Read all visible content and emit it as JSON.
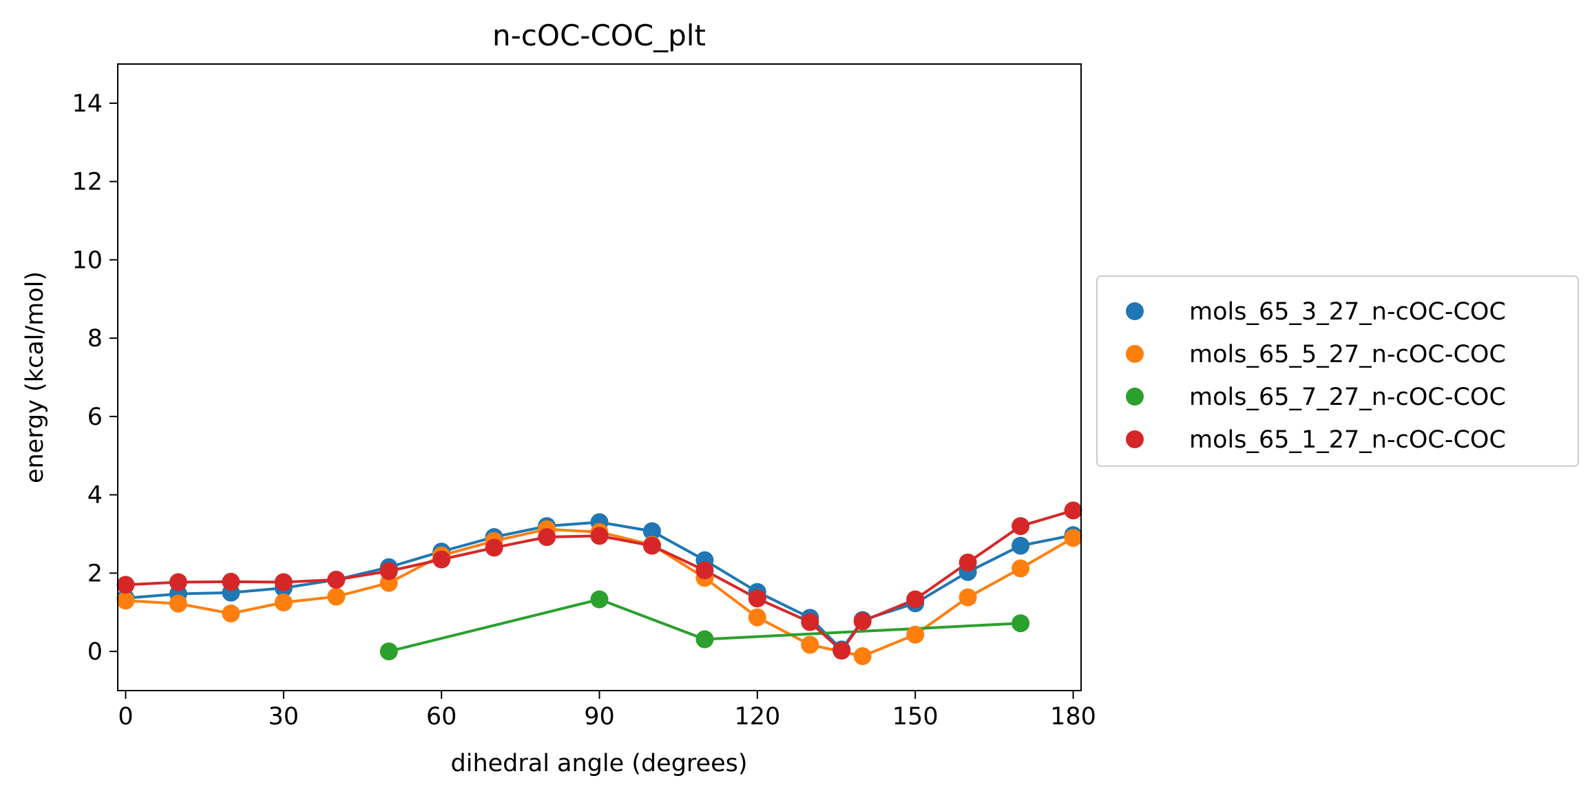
{
  "chart_data": {
    "type": "line",
    "title": "n-cOC-COC_plt",
    "xlabel": "dihedral angle (degrees)",
    "ylabel": "energy (kcal/mol)",
    "xlim": [
      -1.5,
      181.5
    ],
    "ylim": [
      -1,
      15
    ],
    "xticks": [
      0,
      30,
      60,
      90,
      120,
      150,
      180
    ],
    "yticks": [
      0,
      2,
      4,
      6,
      8,
      10,
      12,
      14
    ],
    "grid": false,
    "legend_position": "right-outside",
    "series": [
      {
        "name": "mols_65_3_27_n-cOC-COC",
        "color": "#1f77b4",
        "x": [
          0,
          10,
          20,
          30,
          40,
          50,
          60,
          70,
          80,
          90,
          100,
          110,
          120,
          130,
          136,
          140,
          150,
          160,
          170,
          180
        ],
        "y": [
          1.36,
          1.47,
          1.5,
          1.62,
          1.83,
          2.15,
          2.55,
          2.92,
          3.2,
          3.3,
          3.07,
          2.33,
          1.52,
          0.86,
          0.05,
          0.8,
          1.23,
          2.03,
          2.7,
          2.97
        ]
      },
      {
        "name": "mols_65_5_27_n-cOC-COC",
        "color": "#ff7f0e",
        "x": [
          0,
          10,
          20,
          30,
          40,
          50,
          60,
          70,
          80,
          90,
          100,
          110,
          120,
          130,
          140,
          150,
          160,
          170,
          180
        ],
        "y": [
          1.3,
          1.22,
          0.97,
          1.25,
          1.4,
          1.75,
          2.45,
          2.82,
          3.12,
          3.05,
          2.72,
          1.88,
          0.87,
          0.17,
          -0.12,
          0.43,
          1.38,
          2.12,
          2.9
        ]
      },
      {
        "name": "mols_65_7_27_n-cOC-COC",
        "color": "#2ca02c",
        "x": [
          50,
          90,
          110,
          170
        ],
        "y": [
          0.0,
          1.33,
          0.31,
          0.72
        ]
      },
      {
        "name": "mols_65_1_27_n-cOC-COC",
        "color": "#d62728",
        "x": [
          0,
          10,
          20,
          30,
          40,
          50,
          60,
          70,
          80,
          90,
          100,
          110,
          120,
          130,
          136,
          140,
          150,
          160,
          170,
          180
        ],
        "y": [
          1.7,
          1.77,
          1.78,
          1.77,
          1.83,
          2.05,
          2.35,
          2.65,
          2.92,
          2.95,
          2.7,
          2.07,
          1.35,
          0.75,
          0.02,
          0.77,
          1.33,
          2.27,
          3.2,
          3.6
        ]
      }
    ]
  }
}
